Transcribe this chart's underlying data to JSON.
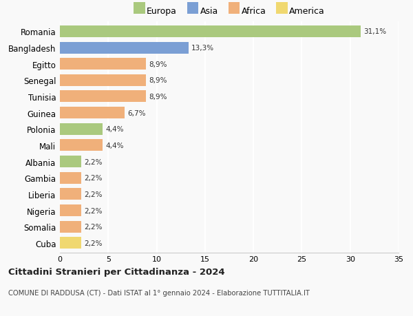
{
  "countries": [
    "Romania",
    "Bangladesh",
    "Egitto",
    "Senegal",
    "Tunisia",
    "Guinea",
    "Polonia",
    "Mali",
    "Albania",
    "Gambia",
    "Liberia",
    "Nigeria",
    "Somalia",
    "Cuba"
  ],
  "values": [
    31.1,
    13.3,
    8.9,
    8.9,
    8.9,
    6.7,
    4.4,
    4.4,
    2.2,
    2.2,
    2.2,
    2.2,
    2.2,
    2.2
  ],
  "labels": [
    "31,1%",
    "13,3%",
    "8,9%",
    "8,9%",
    "8,9%",
    "6,7%",
    "4,4%",
    "4,4%",
    "2,2%",
    "2,2%",
    "2,2%",
    "2,2%",
    "2,2%",
    "2,2%"
  ],
  "continents": [
    "Europa",
    "Asia",
    "Africa",
    "Africa",
    "Africa",
    "Africa",
    "Europa",
    "Africa",
    "Europa",
    "Africa",
    "Africa",
    "Africa",
    "Africa",
    "America"
  ],
  "colors": {
    "Europa": "#aac97e",
    "Asia": "#7b9fd4",
    "Africa": "#f0b07a",
    "America": "#f0d870"
  },
  "legend_order": [
    "Europa",
    "Asia",
    "Africa",
    "America"
  ],
  "title": "Cittadini Stranieri per Cittadinanza - 2024",
  "subtitle": "COMUNE DI RADDUSA (CT) - Dati ISTAT al 1° gennaio 2024 - Elaborazione TUTTITALIA.IT",
  "xlim": [
    0,
    35
  ],
  "xticks": [
    0,
    5,
    10,
    15,
    20,
    25,
    30,
    35
  ],
  "background_color": "#f9f9f9",
  "grid_color": "#ffffff",
  "bar_height": 0.72
}
